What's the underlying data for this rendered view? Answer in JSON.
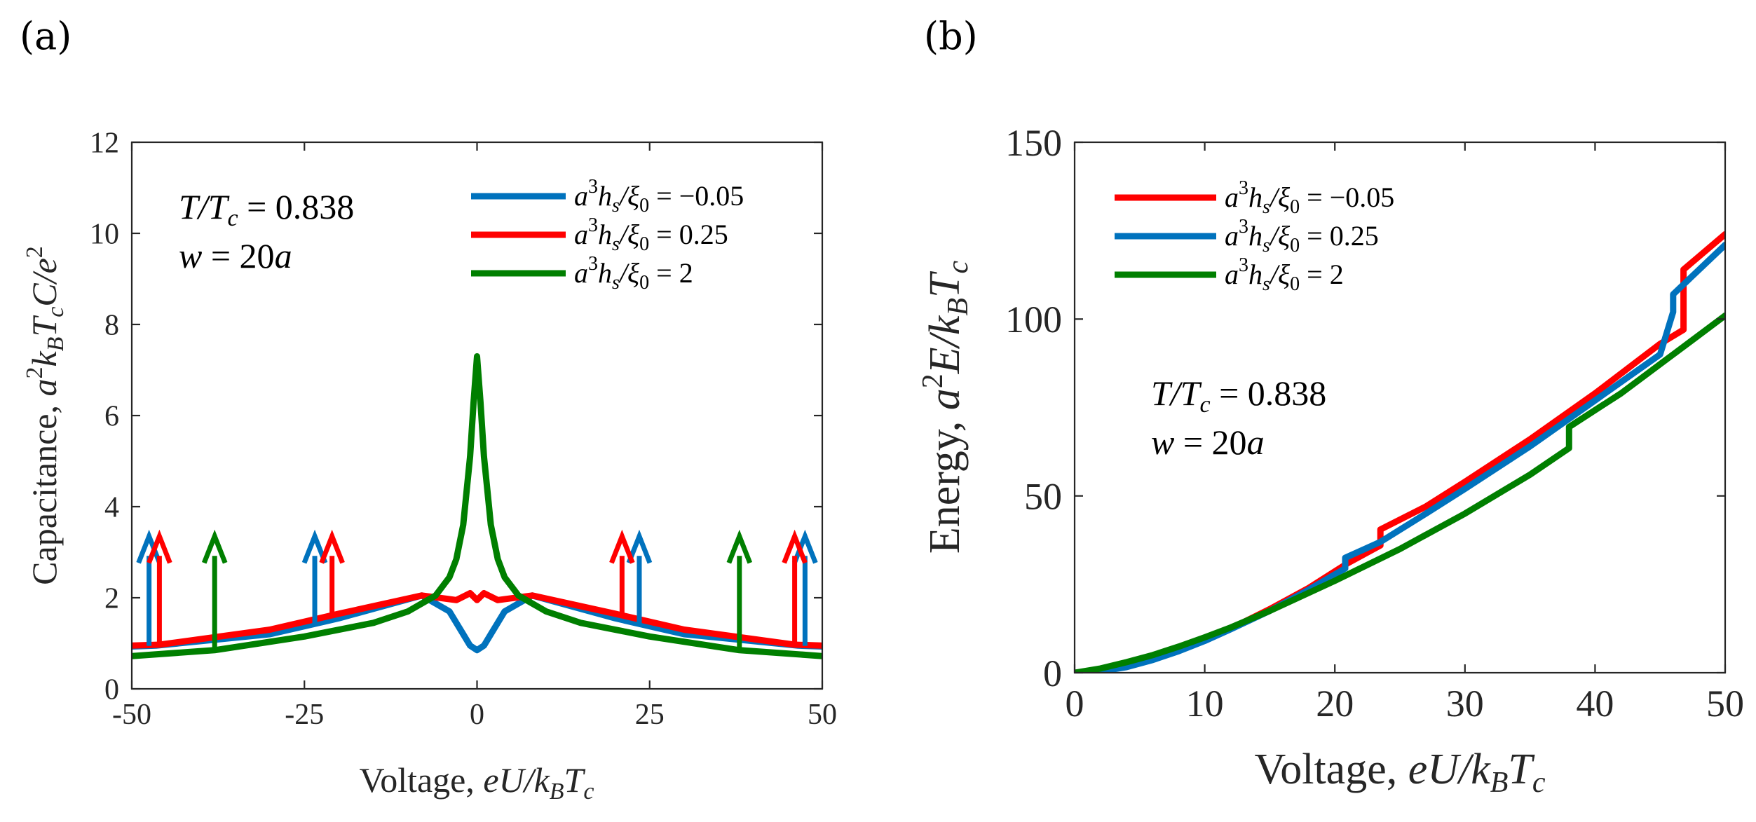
{
  "chart_data": [
    {
      "type": "line",
      "panel_label": "(a)",
      "xlabel": "Voltage, eU/k_BT_c",
      "xlabel_parts": {
        "text": "Voltage, ",
        "math": "eU/k",
        "sub1": "B",
        "math2": "T",
        "sub2": "c"
      },
      "ylabel": "Capacitance, a^2k_BT_cC/e^2",
      "ylabel_parts": {
        "text": "Capacitance, ",
        "math": "a",
        "sup": "2",
        "math_b": "k",
        "sub1": "B",
        "math_c": "T",
        "sub2": "c",
        "math_d": "C/e",
        "sup2": "2"
      },
      "xlim": [
        -50,
        50
      ],
      "ylim": [
        0,
        12
      ],
      "xticks": [
        -50,
        -25,
        0,
        25,
        50
      ],
      "xtick_labels": [
        "-50",
        "-25",
        "0",
        "25",
        "50"
      ],
      "yticks": [
        0,
        2,
        4,
        6,
        8,
        10,
        12
      ],
      "ytick_labels": [
        "0",
        "2",
        "4",
        "6",
        "8",
        "10",
        "12"
      ],
      "annotation": [
        "T/T_c = 0.838",
        "w = 20a"
      ],
      "annotation_parts": [
        {
          "math": "T/T",
          "sub": "c",
          "rest": " = 0.838"
        },
        {
          "math": "w",
          "rest": " = 20",
          "math2": "a"
        }
      ],
      "legend_position": "top-right",
      "series": [
        {
          "name": "a^3h_s/ξ_0 = −0.05",
          "legend_parts": {
            "a": "a",
            "sup": "3",
            "h": "h",
            "sub": "s",
            "xi": "/ξ",
            "sub2": "0",
            "rest": " = −0.05"
          },
          "color": "#0072BD",
          "x": [
            -50,
            -46.5,
            -30,
            -20,
            -14,
            -8,
            -4,
            -2,
            -1,
            0,
            1,
            2,
            4,
            8,
            14,
            20,
            30,
            46.5,
            50
          ],
          "y": [
            0.93,
            0.95,
            1.2,
            1.55,
            1.8,
            2.05,
            1.7,
            1.2,
            0.95,
            0.85,
            0.95,
            1.2,
            1.7,
            2.05,
            1.8,
            1.55,
            1.2,
            0.95,
            0.93
          ],
          "arrows": [
            -47.5,
            -23.5,
            23.5,
            47.5
          ]
        },
        {
          "name": "a^3h_s/ξ_0 = 0.25",
          "legend_parts": {
            "a": "a",
            "sup": "3",
            "h": "h",
            "sub": "s",
            "xi": "/ξ",
            "sub2": "0",
            "rest": " = 0.25"
          },
          "color": "#FF0000",
          "x": [
            -50,
            -46,
            -30,
            -20,
            -14,
            -8,
            -3,
            -1,
            0,
            1,
            3,
            8,
            14,
            20,
            30,
            46,
            50
          ],
          "y": [
            0.95,
            0.97,
            1.3,
            1.65,
            1.85,
            2.05,
            1.95,
            2.1,
            1.95,
            2.1,
            1.95,
            2.05,
            1.85,
            1.65,
            1.3,
            0.97,
            0.95
          ],
          "arrows": [
            -46,
            -21,
            21,
            46
          ]
        },
        {
          "name": "a^3h_s/ξ_0 = 2",
          "legend_parts": {
            "a": "a",
            "sup": "3",
            "h": "h",
            "sub": "s",
            "xi": "/ξ",
            "sub2": "0",
            "rest": " = 2"
          },
          "color": "#007F00",
          "x": [
            -50,
            -38,
            -25,
            -15,
            -10,
            -6,
            -4,
            -3,
            -2,
            -1,
            -0.5,
            0,
            0.5,
            1,
            2,
            3,
            4,
            6,
            10,
            15,
            25,
            38,
            50
          ],
          "y": [
            0.72,
            0.85,
            1.15,
            1.45,
            1.7,
            2.05,
            2.45,
            2.85,
            3.6,
            5.1,
            6.3,
            7.3,
            6.3,
            5.1,
            3.6,
            2.85,
            2.45,
            2.05,
            1.7,
            1.45,
            1.15,
            0.85,
            0.72
          ],
          "arrows": [
            -38,
            38
          ]
        }
      ]
    },
    {
      "type": "line",
      "panel_label": "(b)",
      "xlabel": "Voltage, eU/k_BT_c",
      "xlabel_parts": {
        "text": "Voltage, ",
        "math": "eU/k",
        "sub1": "B",
        "math2": "T",
        "sub2": "c"
      },
      "ylabel": "Energy, a^2E/k_BT_c",
      "ylabel_parts": {
        "text": "Energy, ",
        "math": "a",
        "sup": "2",
        "math_b": "E/k",
        "sub1": "B",
        "math_c": "T",
        "sub2": "c"
      },
      "xlim": [
        0,
        50
      ],
      "ylim": [
        0,
        150
      ],
      "xticks": [
        0,
        10,
        20,
        30,
        40,
        50
      ],
      "xtick_labels": [
        "0",
        "10",
        "20",
        "30",
        "40",
        "50"
      ],
      "yticks": [
        0,
        50,
        100,
        150
      ],
      "ytick_labels": [
        "0",
        "50",
        "100",
        "150"
      ],
      "annotation": [
        "T/T_c = 0.838",
        "w = 20a"
      ],
      "annotation_parts": [
        {
          "math": "T/T",
          "sub": "c",
          "rest": " = 0.838"
        },
        {
          "math": "w",
          "rest": " = 20",
          "math2": "a"
        }
      ],
      "legend_position": "top-left",
      "series": [
        {
          "name": "a^3h_s/ξ_0 = −0.05",
          "legend_parts": {
            "a": "a",
            "sup": "3",
            "h": "h",
            "sub": "s",
            "xi": "/ξ",
            "sub2": "0",
            "rest": " = −0.05"
          },
          "color": "#FF0000",
          "x": [
            0,
            2,
            4,
            6,
            8,
            10,
            12,
            15,
            18,
            21,
            23.5,
            23.5,
            27,
            30,
            35,
            40,
            45,
            46.8,
            46.8,
            50
          ],
          "y": [
            0,
            0.5,
            1.8,
            3.8,
            6.3,
            9.2,
            12.5,
            18,
            24,
            31,
            36,
            40.5,
            47,
            54,
            66,
            79,
            93,
            97,
            114,
            124
          ]
        },
        {
          "name": "a^3h_s/ξ_0 = 0.25",
          "legend_parts": {
            "a": "a",
            "sup": "3",
            "h": "h",
            "sub": "s",
            "xi": "/ξ",
            "sub2": "0",
            "rest": " = 0.25"
          },
          "color": "#0072BD",
          "x": [
            0,
            2,
            4,
            6,
            8,
            10,
            12,
            15,
            18,
            20.8,
            20.8,
            23.5,
            27,
            30,
            35,
            40,
            45,
            46,
            46,
            50
          ],
          "y": [
            0,
            0.4,
            1.6,
            3.6,
            6.1,
            9.0,
            12.3,
            17.5,
            23.5,
            29.5,
            32.5,
            37,
            45,
            52,
            64,
            77,
            90,
            102,
            107,
            121
          ]
        },
        {
          "name": "a^3h_s/ξ_0 = 2",
          "legend_parts": {
            "a": "a",
            "sup": "3",
            "h": "h",
            "sub": "s",
            "xi": "/ξ",
            "sub2": "0",
            "rest": " = 2"
          },
          "color": "#007F00",
          "x": [
            0,
            2,
            4,
            6,
            8,
            10,
            12,
            15,
            20,
            25,
            30,
            35,
            38,
            38,
            42,
            46,
            50
          ],
          "y": [
            0,
            1.2,
            3.0,
            5.0,
            7.4,
            10.0,
            12.8,
            17.5,
            26,
            35,
            45,
            56,
            63.5,
            69.5,
            79,
            90,
            101
          ]
        }
      ]
    }
  ]
}
